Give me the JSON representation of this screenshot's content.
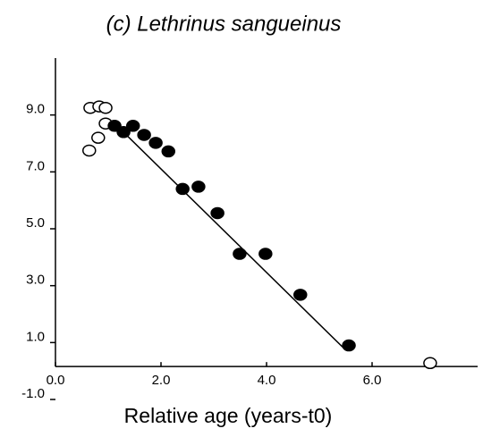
{
  "chart_data": {
    "type": "scatter",
    "title": "(c) Lethrinus sangueinus",
    "xlabel": "Relative age (years-t0)",
    "xlim": [
      0,
      8
    ],
    "ylim": [
      -1,
      11
    ],
    "xticks": [
      {
        "value": 0,
        "label": "0.0"
      },
      {
        "value": 2,
        "label": "2.0"
      },
      {
        "value": 4,
        "label": "4.0"
      },
      {
        "value": 6,
        "label": "6.0"
      }
    ],
    "yticks": [
      {
        "value": -1,
        "label": "-1.0"
      },
      {
        "value": 1,
        "label": "1.0"
      },
      {
        "value": 3,
        "label": "3.0"
      },
      {
        "value": 5,
        "label": "5.0"
      },
      {
        "value": 7,
        "label": "7.0"
      },
      {
        "value": 9,
        "label": "9.0"
      }
    ],
    "series": [
      {
        "mode": "markers",
        "color": "#000",
        "fill": "#fff",
        "x": [
          0.64,
          0.66,
          0.83,
          0.81,
          0.95,
          0.95,
          7.1
        ],
        "values": [
          7.75,
          9.25,
          9.3,
          8.2,
          9.25,
          8.7,
          0.28
        ]
      },
      {
        "mode": "markers",
        "color": "#000",
        "fill": "#000",
        "x": [
          1.12,
          1.29,
          1.47,
          1.68,
          1.9,
          2.14,
          2.41,
          2.71,
          3.07,
          3.49,
          3.98,
          4.64,
          5.56
        ],
        "values": [
          8.62,
          8.4,
          8.62,
          8.3,
          8.02,
          7.72,
          6.4,
          6.48,
          5.55,
          4.12,
          4.12,
          2.68,
          0.9
        ]
      },
      {
        "mode": "line",
        "color": "#000",
        "x": [
          1.15,
          5.47
        ],
        "values": [
          8.65,
          0.79
        ]
      }
    ]
  }
}
